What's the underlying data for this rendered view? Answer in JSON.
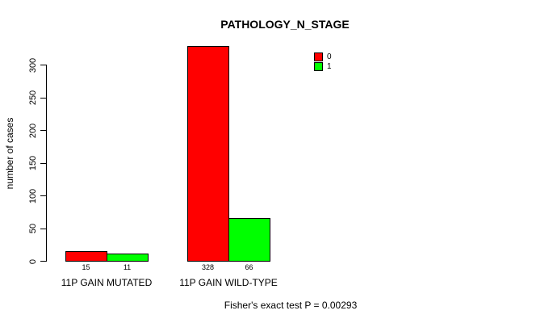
{
  "title": "PATHOLOGY_N_STAGE",
  "footer": "Fisher's exact test P = 0.00293",
  "colors": {
    "series0": "#FF0000",
    "series1": "#00FF00",
    "axis": "#000000",
    "background": "#FFFFFF"
  },
  "chart_data": {
    "type": "bar",
    "title": "PATHOLOGY_N_STAGE",
    "xlabel": "",
    "ylabel": "number of cases",
    "ylim": [
      0,
      300
    ],
    "yticks": [
      0,
      50,
      100,
      150,
      200,
      250,
      300
    ],
    "grid": false,
    "legend_position": "top-right",
    "categories": [
      "11P GAIN MUTATED",
      "11P GAIN WILD-TYPE"
    ],
    "series": [
      {
        "name": "0",
        "color": "#FF0000",
        "values": [
          15,
          328
        ]
      },
      {
        "name": "1",
        "color": "#00FF00",
        "values": [
          11,
          66
        ]
      }
    ],
    "bar_value_labels": [
      [
        "15",
        "328"
      ],
      [
        "11",
        "66"
      ]
    ],
    "annotation": "Fisher's exact test P = 0.00293"
  }
}
